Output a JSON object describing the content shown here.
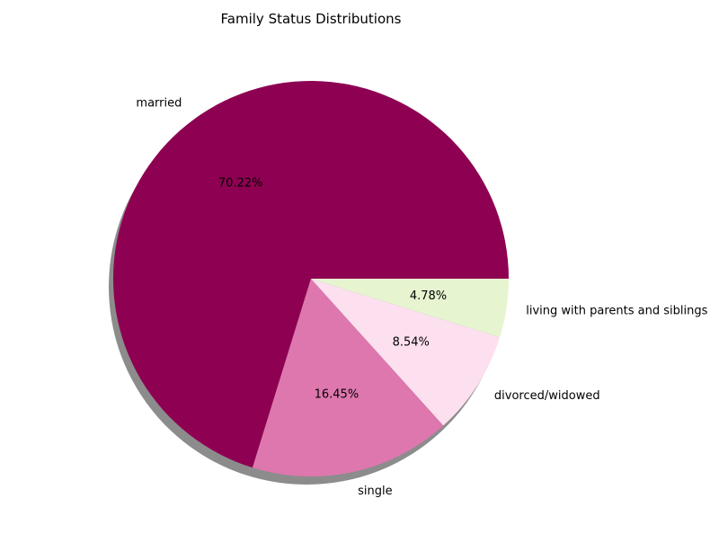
{
  "chart_data": {
    "type": "pie",
    "title": "Family Status Distributions",
    "slices": [
      {
        "label": "married",
        "value": 70.22,
        "pct_label": "70.22%",
        "color": "#8e0152"
      },
      {
        "label": "single",
        "value": 16.45,
        "pct_label": "16.45%",
        "color": "#de77ae"
      },
      {
        "label": "divorced/widowed",
        "value": 8.54,
        "pct_label": "8.54%",
        "color": "#fde0ef"
      },
      {
        "label": "living with parents and siblings",
        "value": 4.78,
        "pct_label": "4.78%",
        "color": "#e6f5d0"
      }
    ],
    "start_angle_deg": 0,
    "direction": "counterclockwise",
    "shadow": true,
    "legend": "none"
  }
}
